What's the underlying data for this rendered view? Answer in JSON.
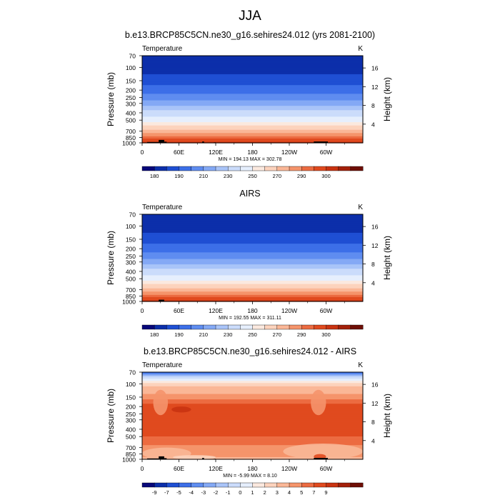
{
  "page_title": "JJA",
  "colors": {
    "temperature_scale": [
      "#08087a",
      "#0c2faa",
      "#1f4fd3",
      "#3c6fe8",
      "#5f8df0",
      "#84a9f5",
      "#a9c4f8",
      "#cbdcfb",
      "#e6effd",
      "#fbe9df",
      "#fcd3bd",
      "#fab797",
      "#f5946b",
      "#ec6b41",
      "#e04a1f",
      "#c93311",
      "#a3200a",
      "#6e0e05"
    ],
    "difference_scale": [
      "#08087a",
      "#0c2faa",
      "#1f4fd3",
      "#3c6fe8",
      "#5f8df0",
      "#84a9f5",
      "#a9c4f8",
      "#cbdcfb",
      "#e6effd",
      "#fbe9df",
      "#fcd3bd",
      "#fab797",
      "#f5946b",
      "#ec6b41",
      "#e04a1f",
      "#c93311",
      "#a3200a",
      "#6e0e05"
    ],
    "topography": "#000000"
  },
  "chart_data": [
    {
      "type": "heatmap",
      "title": "b.e13.BRCP85C5CN.ne30_g16.sehires24.012 (yrs 2081-2100)",
      "left_label": "Temperature",
      "right_label": "K",
      "xlabel": "",
      "ylabel": "Pressure (mb)",
      "ylabel_right": "Height (km)",
      "x_ticks": [
        "0",
        "60E",
        "120E",
        "180",
        "120W",
        "60W"
      ],
      "x_tick_values": [
        0,
        60,
        120,
        180,
        240,
        300
      ],
      "xlim": [
        0,
        360
      ],
      "y_ticks": [
        "70",
        "100",
        "150",
        "200",
        "250",
        "300",
        "400",
        "500",
        "700",
        "850",
        "1000"
      ],
      "y_tick_values": [
        70,
        100,
        150,
        200,
        250,
        300,
        400,
        500,
        700,
        850,
        1000
      ],
      "ylim": [
        1000,
        70
      ],
      "height_ticks": [
        "16",
        "12",
        "8",
        "4"
      ],
      "height_tick_values": [
        16,
        12,
        8,
        4
      ],
      "stats": "MIN = 194.13  MAX = 302.78",
      "min": 194.13,
      "max": 302.78,
      "colorbar_labels": [
        "180",
        "190",
        "210",
        "230",
        "250",
        "270",
        "290",
        "300"
      ],
      "colorbar_label_bins": [
        1,
        3,
        5,
        7,
        9,
        11,
        13,
        15
      ],
      "scale": "temperature_scale",
      "profile": {
        "pressure": [
          70,
          100,
          150,
          200,
          250,
          300,
          400,
          500,
          700,
          850,
          1000
        ],
        "level": [
          1,
          1,
          2,
          3,
          4,
          5,
          7,
          8,
          11,
          13,
          15
        ]
      },
      "topography": [
        {
          "lon": [
            8,
            27
          ],
          "pressure": [
            1000,
            975
          ]
        },
        {
          "lon": [
            27,
            36
          ],
          "pressure": [
            1000,
            915
          ]
        },
        {
          "lon": [
            36,
            40
          ],
          "pressure": [
            1000,
            965
          ]
        },
        {
          "lon": [
            98,
            101
          ],
          "pressure": [
            1000,
            960
          ]
        },
        {
          "lon": [
            117,
            120
          ],
          "pressure": [
            1000,
            985
          ]
        },
        {
          "lon": [
            280,
            303
          ],
          "pressure": [
            1000,
            960
          ]
        }
      ]
    },
    {
      "type": "heatmap",
      "title": "AIRS",
      "left_label": "Temperature",
      "right_label": "K",
      "xlabel": "",
      "ylabel": "Pressure (mb)",
      "ylabel_right": "Height (km)",
      "x_ticks": [
        "0",
        "60E",
        "120E",
        "180",
        "120W",
        "60W"
      ],
      "x_tick_values": [
        0,
        60,
        120,
        180,
        240,
        300
      ],
      "xlim": [
        0,
        360
      ],
      "y_ticks": [
        "70",
        "100",
        "150",
        "200",
        "250",
        "300",
        "400",
        "500",
        "700",
        "850",
        "1000"
      ],
      "y_tick_values": [
        70,
        100,
        150,
        200,
        250,
        300,
        400,
        500,
        700,
        850,
        1000
      ],
      "ylim": [
        1000,
        70
      ],
      "height_ticks": [
        "16",
        "12",
        "8",
        "4"
      ],
      "height_tick_values": [
        16,
        12,
        8,
        4
      ],
      "stats": "MIN = 192.55  MAX = 311.11",
      "min": 192.55,
      "max": 311.11,
      "colorbar_labels": [
        "180",
        "190",
        "210",
        "230",
        "250",
        "270",
        "290",
        "300"
      ],
      "colorbar_label_bins": [
        1,
        3,
        5,
        7,
        9,
        11,
        13,
        15
      ],
      "scale": "temperature_scale",
      "profile": {
        "pressure": [
          70,
          100,
          150,
          200,
          250,
          300,
          400,
          500,
          700,
          850,
          1000
        ],
        "level": [
          1,
          1,
          2,
          3,
          4,
          5,
          7,
          8,
          11,
          13,
          15
        ]
      },
      "topography": [
        {
          "lon": [
            27,
            36
          ],
          "pressure": [
            1000,
            950
          ]
        }
      ]
    },
    {
      "type": "heatmap",
      "title": "b.e13.BRCP85C5CN.ne30_g16.sehires24.012 - AIRS",
      "left_label": "Temperature",
      "right_label": "K",
      "xlabel": "",
      "ylabel": "Pressure (mb)",
      "ylabel_right": "Height (km)",
      "x_ticks": [
        "0",
        "60E",
        "120E",
        "180",
        "120W",
        "60W"
      ],
      "x_tick_values": [
        0,
        60,
        120,
        180,
        240,
        300
      ],
      "xlim": [
        0,
        360
      ],
      "y_ticks": [
        "70",
        "100",
        "150",
        "200",
        "250",
        "300",
        "400",
        "500",
        "700",
        "850",
        "1000"
      ],
      "y_tick_values": [
        70,
        100,
        150,
        200,
        250,
        300,
        400,
        500,
        700,
        850,
        1000
      ],
      "ylim": [
        1000,
        70
      ],
      "height_ticks": [
        "16",
        "12",
        "8",
        "4"
      ],
      "height_tick_values": [
        16,
        12,
        8,
        4
      ],
      "stats": "MIN = -5.99  MAX = 8.10",
      "min": -5.99,
      "max": 8.1,
      "colorbar_labels": [
        "-9",
        "-7",
        "-5",
        "-4",
        "-3",
        "-2",
        "-1",
        "0",
        "1",
        "2",
        "3",
        "4",
        "5",
        "7",
        "9"
      ],
      "colorbar_label_bins": [
        1,
        2,
        3,
        4,
        5,
        6,
        7,
        8,
        9,
        10,
        11,
        12,
        13,
        14,
        15
      ],
      "scale": "difference_scale",
      "profile": {
        "pressure": [
          70,
          80,
          90,
          100,
          120,
          150,
          200,
          400,
          600,
          700,
          850,
          1000
        ],
        "level": [
          3,
          7,
          8,
          10,
          11,
          12,
          14,
          14,
          13,
          12,
          12,
          11
        ]
      },
      "blobs": [
        {
          "lon": [
            18,
            42
          ],
          "pressure": [
            120,
            260
          ],
          "level": 12
        },
        {
          "lon": [
            275,
            300
          ],
          "pressure": [
            120,
            260
          ],
          "level": 12
        },
        {
          "lon": [
            48,
            80
          ],
          "pressure": [
            200,
            240
          ],
          "level": 15
        },
        {
          "lon": [
            0,
            80
          ],
          "pressure": [
            700,
            1000
          ],
          "level": 11
        },
        {
          "lon": [
            230,
            360
          ],
          "pressure": [
            620,
            1000
          ],
          "level": 11
        },
        {
          "lon": [
            50,
            120
          ],
          "pressure": [
            880,
            1000
          ],
          "level": 10
        },
        {
          "lon": [
            280,
            300
          ],
          "pressure": [
            850,
            1000
          ],
          "level": 14
        }
      ],
      "topography": [
        {
          "lon": [
            8,
            27
          ],
          "pressure": [
            1000,
            975
          ]
        },
        {
          "lon": [
            27,
            36
          ],
          "pressure": [
            1000,
            915
          ]
        },
        {
          "lon": [
            36,
            40
          ],
          "pressure": [
            1000,
            965
          ]
        },
        {
          "lon": [
            98,
            101
          ],
          "pressure": [
            1000,
            960
          ]
        },
        {
          "lon": [
            117,
            120
          ],
          "pressure": [
            1000,
            985
          ]
        },
        {
          "lon": [
            280,
            303
          ],
          "pressure": [
            1000,
            960
          ]
        }
      ]
    }
  ]
}
